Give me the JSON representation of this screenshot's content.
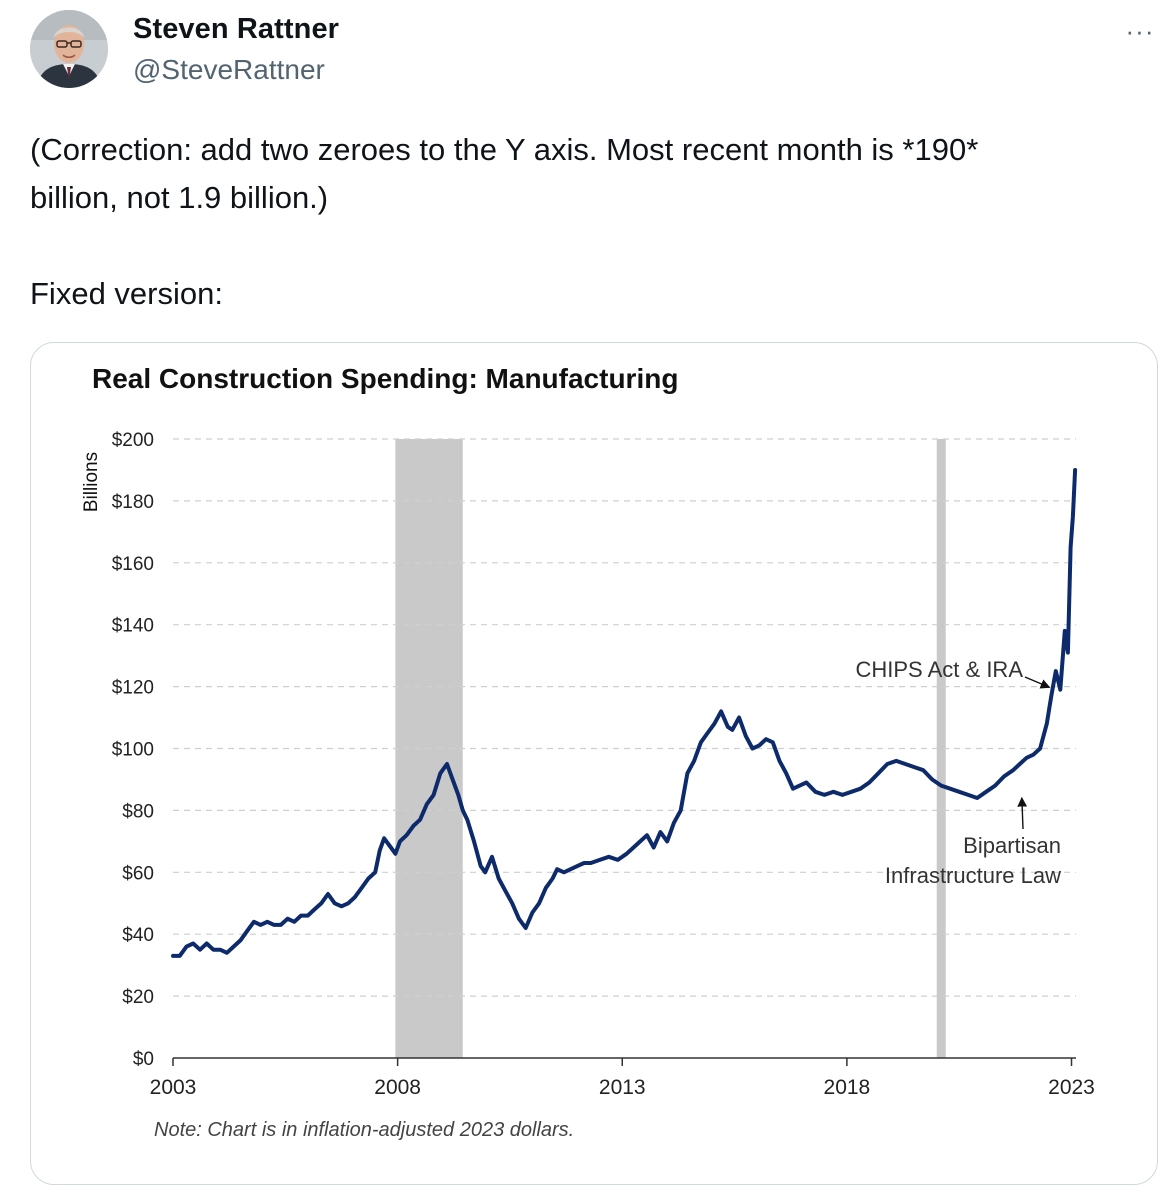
{
  "tweet": {
    "author": {
      "display_name": "Steven Rattner",
      "handle": "@SteveRattner",
      "avatar_icon": "profile-photo"
    },
    "more_icon": "ellipsis-icon",
    "more_label": "···",
    "text_line1": "(Correction: add two zeroes to the Y axis. Most recent month is *190*",
    "text_line2": "billion, not 1.9 billion.)",
    "text_line3": "Fixed version:"
  },
  "colors": {
    "text_primary": "#0f1419",
    "text_secondary": "#536471",
    "border": "#cfd9de",
    "line": "#0d2a6b",
    "recession_shade": "#c9c9c9"
  },
  "chart_data": {
    "type": "line",
    "title": "Real Construction Spending: Manufacturing",
    "ylabel": "Billions",
    "xlabel": "",
    "ylim": [
      0,
      200
    ],
    "xlim": [
      2003,
      2023.1
    ],
    "yticks": [
      0,
      20,
      40,
      60,
      80,
      100,
      120,
      140,
      160,
      180,
      200
    ],
    "ytick_labels": [
      "$0",
      "$20",
      "$40",
      "$60",
      "$80",
      "$100",
      "$120",
      "$140",
      "$160",
      "$180",
      "$200"
    ],
    "xticks": [
      2003,
      2008,
      2013,
      2018,
      2023
    ],
    "xtick_labels": [
      "2003",
      "2008",
      "2013",
      "2018",
      "2023"
    ],
    "grid": "horizontal-dashed",
    "recessions": [
      {
        "start": 2007.95,
        "end": 2009.45
      },
      {
        "start": 2020.0,
        "end": 2020.2
      }
    ],
    "annotations": [
      {
        "text": "CHIPS Act & IRA",
        "x": 2022.6,
        "y": 122,
        "label_x": 2020.7,
        "label_y": 125
      },
      {
        "text": "Bipartisan",
        "text2": "Infrastructure Law",
        "x": 2021.85,
        "y": 86,
        "label_x": 2021.5,
        "label_y": 68
      }
    ],
    "note": "Note: Chart is in inflation-adjusted 2023 dollars.",
    "series": [
      {
        "name": "Manufacturing",
        "x": [
          2003.0,
          2003.15,
          2003.3,
          2003.45,
          2003.6,
          2003.75,
          2003.9,
          2004.05,
          2004.2,
          2004.35,
          2004.5,
          2004.65,
          2004.8,
          2004.95,
          2005.1,
          2005.25,
          2005.4,
          2005.55,
          2005.7,
          2005.85,
          2006.0,
          2006.15,
          2006.3,
          2006.45,
          2006.6,
          2006.75,
          2006.9,
          2007.05,
          2007.2,
          2007.35,
          2007.5,
          2007.6,
          2007.7,
          2007.85,
          2007.95,
          2008.05,
          2008.2,
          2008.35,
          2008.5,
          2008.65,
          2008.8,
          2008.95,
          2009.1,
          2009.2,
          2009.35,
          2009.45,
          2009.55,
          2009.7,
          2009.85,
          2009.95,
          2010.1,
          2010.25,
          2010.4,
          2010.55,
          2010.7,
          2010.85,
          2011.0,
          2011.15,
          2011.3,
          2011.45,
          2011.55,
          2011.7,
          2011.85,
          2012.0,
          2012.15,
          2012.3,
          2012.5,
          2012.7,
          2012.9,
          2013.1,
          2013.25,
          2013.4,
          2013.55,
          2013.7,
          2013.85,
          2014.0,
          2014.15,
          2014.3,
          2014.45,
          2014.6,
          2014.75,
          2014.9,
          2015.05,
          2015.2,
          2015.35,
          2015.45,
          2015.6,
          2015.75,
          2015.9,
          2016.05,
          2016.2,
          2016.35,
          2016.5,
          2016.65,
          2016.8,
          2016.95,
          2017.1,
          2017.3,
          2017.5,
          2017.7,
          2017.9,
          2018.1,
          2018.3,
          2018.5,
          2018.7,
          2018.9,
          2019.1,
          2019.3,
          2019.5,
          2019.7,
          2019.9,
          2020.1,
          2020.3,
          2020.5,
          2020.7,
          2020.9,
          2021.1,
          2021.3,
          2021.5,
          2021.7,
          2021.85,
          2022.0,
          2022.15,
          2022.3,
          2022.45,
          2022.55,
          2022.65,
          2022.75,
          2022.85,
          2022.92,
          2022.98,
          2023.03,
          2023.08
        ],
        "y": [
          33,
          33,
          36,
          37,
          35,
          37,
          35,
          35,
          34,
          36,
          38,
          41,
          44,
          43,
          44,
          43,
          43,
          45,
          44,
          46,
          46,
          48,
          50,
          53,
          50,
          49,
          50,
          52,
          55,
          58,
          60,
          67,
          71,
          68,
          66,
          70,
          72,
          75,
          77,
          82,
          85,
          92,
          95,
          91,
          85,
          80,
          77,
          70,
          62,
          60,
          65,
          58,
          54,
          50,
          45,
          42,
          47,
          50,
          55,
          58,
          61,
          60,
          61,
          62,
          63,
          63,
          64,
          65,
          64,
          66,
          68,
          70,
          72,
          68,
          73,
          70,
          76,
          80,
          92,
          96,
          102,
          105,
          108,
          112,
          107,
          106,
          110,
          104,
          100,
          101,
          103,
          102,
          96,
          92,
          87,
          88,
          89,
          86,
          85,
          86,
          85,
          86,
          87,
          89,
          92,
          95,
          96,
          95,
          94,
          93,
          90,
          88,
          87,
          86,
          85,
          84,
          86,
          88,
          91,
          93,
          95,
          97,
          98,
          100,
          108,
          117,
          125,
          119,
          138,
          131,
          165,
          175,
          190
        ]
      }
    ]
  }
}
